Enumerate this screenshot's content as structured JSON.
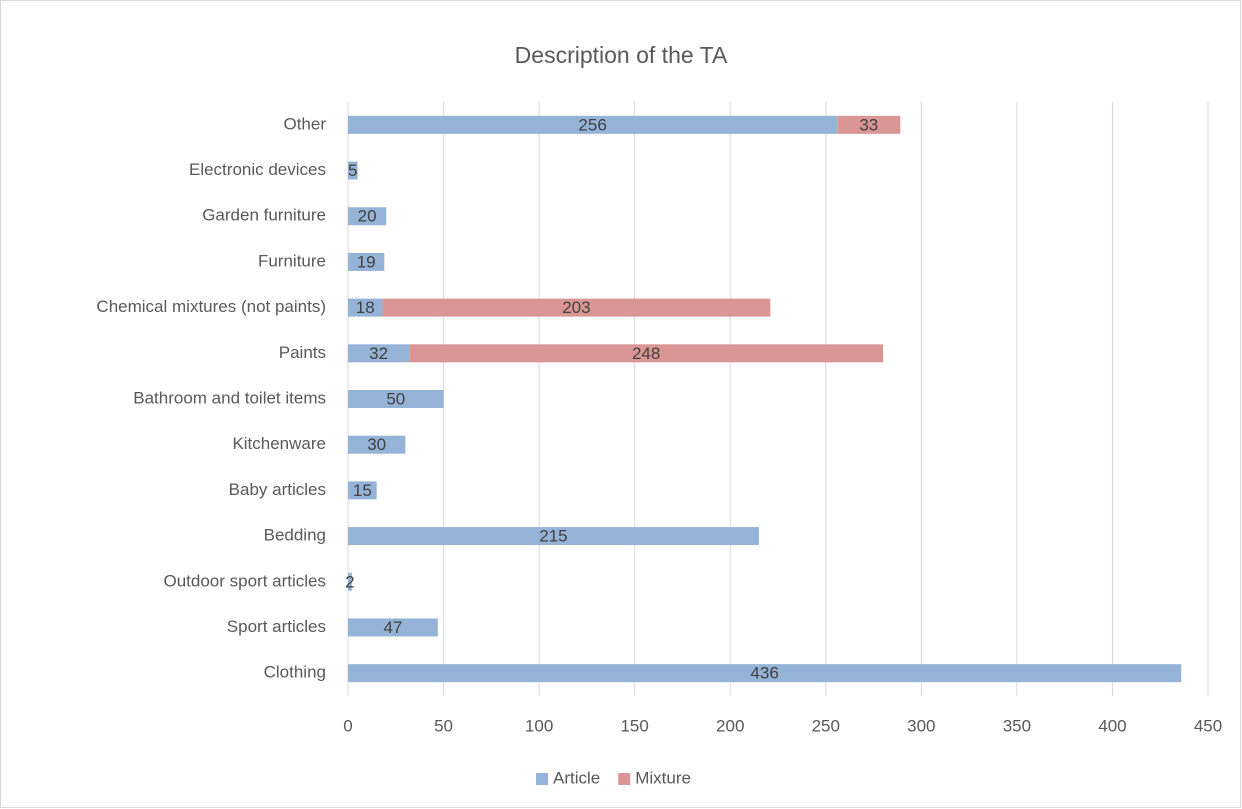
{
  "chart_data": {
    "type": "stacked_barh",
    "title": "Description of the TA",
    "categories": [
      "Other",
      "Electronic devices",
      "Garden furniture",
      "Furniture",
      "Chemical mixtures (not paints)",
      "Paints",
      "Bathroom and toilet items",
      "Kitchenware",
      "Baby articles",
      "Bedding",
      "Outdoor sport articles",
      "Sport articles",
      "Clothing"
    ],
    "series": [
      {
        "name": "Article",
        "color": "#95b3d7",
        "values": [
          256,
          5,
          20,
          19,
          18,
          32,
          50,
          30,
          15,
          215,
          2,
          47,
          436
        ]
      },
      {
        "name": "Mixture",
        "color": "#d99694",
        "values": [
          33,
          null,
          null,
          null,
          203,
          248,
          null,
          null,
          null,
          null,
          null,
          null,
          null
        ]
      }
    ],
    "xlim": [
      0,
      450
    ],
    "xticks": [
      0,
      50,
      100,
      150,
      200,
      250,
      300,
      350,
      400,
      450
    ],
    "grid": true,
    "legend": "bottom"
  }
}
